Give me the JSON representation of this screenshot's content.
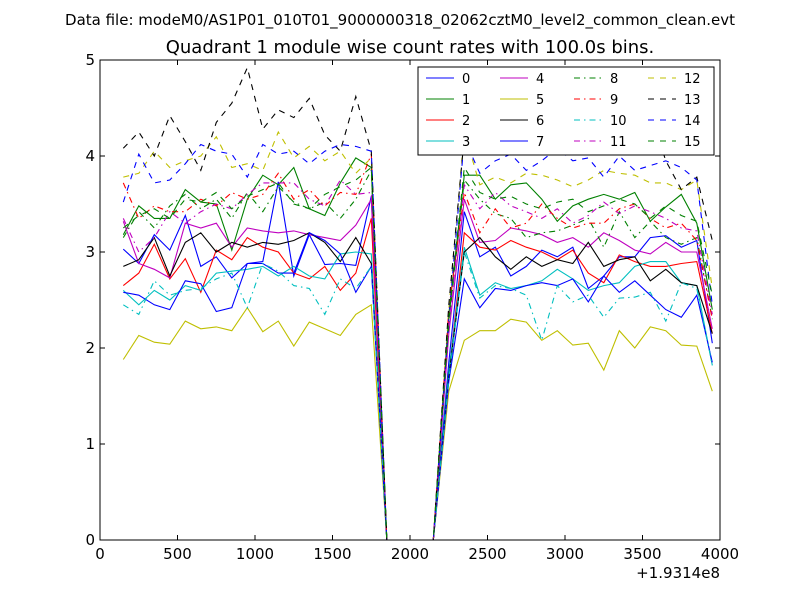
{
  "suptitle": "Data file: modeM0/AS1P01_010T01_9000000318_02062cztM0_level2_common_clean.evt",
  "chart_data": {
    "type": "line",
    "title": "Quadrant 1 module wise count rates with 100.0s bins.",
    "xlabel": "",
    "ylabel": "",
    "offset_label": "+1.9314e8",
    "xlim": [
      0,
      4000
    ],
    "ylim": [
      0,
      5
    ],
    "xticks": [
      0,
      500,
      1000,
      1500,
      2000,
      2500,
      3000,
      3500,
      4000
    ],
    "yticks": [
      0,
      1,
      2,
      3,
      4,
      5
    ],
    "legend_position": "top-right",
    "x": [
      150,
      250,
      350,
      450,
      550,
      650,
      750,
      850,
      950,
      1050,
      1150,
      1250,
      1350,
      1450,
      1550,
      1650,
      1750,
      1850,
      1950,
      2050,
      2150,
      2250,
      2350,
      2450,
      2550,
      2650,
      2750,
      2850,
      2950,
      3050,
      3150,
      3250,
      3350,
      3450,
      3550,
      3650,
      3750,
      3850,
      3950
    ],
    "series": [
      {
        "name": "0",
        "color": "#0000ff",
        "dash": "solid",
        "values": [
          3.03,
          2.88,
          3.18,
          3.02,
          3.38,
          2.85,
          2.95,
          2.73,
          2.88,
          2.9,
          3.73,
          2.75,
          3.18,
          2.87,
          2.88,
          2.86,
          3.58,
          0,
          0,
          0,
          0,
          1.85,
          3.42,
          2.95,
          3.05,
          2.75,
          2.85,
          3.02,
          2.95,
          3.05,
          2.62,
          2.75,
          2.95,
          2.95,
          3.15,
          3.17,
          3.05,
          3.12,
          2.05
        ]
      },
      {
        "name": "1",
        "color": "#008000",
        "dash": "solid",
        "values": [
          3.18,
          3.48,
          3.35,
          3.35,
          3.65,
          3.52,
          3.5,
          3.02,
          3.55,
          3.8,
          3.7,
          3.88,
          3.45,
          3.38,
          3.72,
          3.98,
          3.88,
          0,
          0,
          0,
          0,
          2.35,
          3.8,
          3.8,
          3.55,
          3.7,
          3.72,
          3.55,
          3.32,
          3.48,
          3.55,
          3.6,
          3.55,
          3.62,
          3.32,
          3.47,
          3.6,
          3.3,
          2.4
        ]
      },
      {
        "name": "2",
        "color": "#ff0000",
        "dash": "solid",
        "values": [
          2.65,
          2.78,
          3.08,
          2.72,
          2.93,
          2.58,
          3.02,
          2.92,
          3.15,
          3.05,
          3.0,
          2.78,
          2.72,
          2.85,
          2.6,
          2.78,
          3.35,
          0,
          0,
          0,
          0,
          1.72,
          3.2,
          3.05,
          3.02,
          3.12,
          3.05,
          3.0,
          2.92,
          3.02,
          2.78,
          2.68,
          2.97,
          2.9,
          2.85,
          2.85,
          2.88,
          2.9,
          2.15
        ]
      },
      {
        "name": "3",
        "color": "#00bfbf",
        "dash": "solid",
        "values": [
          2.6,
          2.45,
          2.6,
          2.5,
          2.65,
          2.6,
          2.78,
          2.8,
          2.82,
          2.85,
          2.75,
          2.85,
          2.75,
          2.72,
          2.98,
          3.0,
          2.98,
          0,
          0,
          0,
          0,
          1.75,
          3.05,
          2.55,
          2.68,
          2.62,
          2.65,
          2.7,
          2.82,
          2.72,
          2.6,
          2.65,
          2.68,
          2.85,
          2.9,
          2.9,
          2.68,
          2.65,
          1.82
        ]
      },
      {
        "name": "4",
        "color": "#bf00bf",
        "dash": "solid",
        "values": [
          3.32,
          2.88,
          2.82,
          2.73,
          3.3,
          3.25,
          3.3,
          3.05,
          3.25,
          3.22,
          3.2,
          3.22,
          3.18,
          3.15,
          3.12,
          3.28,
          3.55,
          0,
          0,
          0,
          0,
          2.15,
          3.55,
          3.1,
          3.12,
          3.25,
          3.22,
          3.18,
          3.1,
          3.15,
          3.05,
          3.2,
          3.12,
          3.02,
          2.98,
          3.1,
          3.0,
          3.0,
          2.2
        ]
      },
      {
        "name": "5",
        "color": "#bfbf00",
        "dash": "solid",
        "values": [
          1.88,
          2.13,
          2.06,
          2.04,
          2.28,
          2.2,
          2.22,
          2.18,
          2.42,
          2.17,
          2.28,
          2.02,
          2.27,
          2.2,
          2.13,
          2.35,
          2.45,
          0,
          0,
          0,
          0,
          1.55,
          2.08,
          2.18,
          2.18,
          2.3,
          2.27,
          2.08,
          2.18,
          2.03,
          2.05,
          1.77,
          2.18,
          2.0,
          2.22,
          2.18,
          2.03,
          2.02,
          1.55
        ]
      },
      {
        "name": "6",
        "color": "#000000",
        "dash": "solid",
        "values": [
          2.85,
          2.92,
          3.15,
          2.75,
          3.1,
          3.2,
          3.0,
          3.1,
          3.05,
          3.1,
          3.08,
          3.12,
          3.2,
          3.1,
          2.9,
          3.15,
          2.88,
          0,
          0,
          0,
          0,
          1.7,
          3.0,
          3.15,
          2.95,
          2.82,
          2.95,
          2.85,
          2.92,
          2.88,
          3.1,
          2.85,
          2.92,
          2.95,
          2.7,
          2.82,
          2.68,
          2.65,
          2.15
        ]
      },
      {
        "name": "7",
        "color": "#0000ff",
        "dash": "solid",
        "values": [
          2.58,
          2.55,
          2.45,
          2.4,
          2.7,
          2.67,
          2.38,
          2.42,
          2.88,
          2.88,
          2.78,
          2.78,
          3.2,
          3.12,
          2.98,
          2.58,
          2.85,
          0,
          0,
          0,
          0,
          1.65,
          2.72,
          2.42,
          2.62,
          2.6,
          2.65,
          2.68,
          2.65,
          2.72,
          2.48,
          2.75,
          2.58,
          2.7,
          2.55,
          2.4,
          2.32,
          2.55,
          1.85
        ]
      },
      {
        "name": "8",
        "color": "#008000",
        "dash": "dashdot",
        "values": [
          3.15,
          3.42,
          3.25,
          3.48,
          3.6,
          3.45,
          3.55,
          3.35,
          3.62,
          3.42,
          3.68,
          3.52,
          3.45,
          3.52,
          3.35,
          3.55,
          3.85,
          0,
          0,
          0,
          0,
          2.25,
          3.75,
          3.55,
          3.4,
          3.35,
          3.15,
          3.2,
          3.22,
          3.28,
          3.35,
          3.05,
          3.42,
          3.15,
          3.32,
          3.15,
          3.08,
          3.15,
          2.3
        ]
      },
      {
        "name": "9",
        "color": "#ff0000",
        "dash": "dashdot",
        "values": [
          3.72,
          3.35,
          3.48,
          3.42,
          3.42,
          3.55,
          3.48,
          3.62,
          3.55,
          3.6,
          3.82,
          3.55,
          3.65,
          3.48,
          3.62,
          3.6,
          4.02,
          0,
          0,
          0,
          0,
          2.4,
          3.62,
          3.2,
          3.45,
          3.25,
          3.3,
          3.5,
          3.35,
          3.25,
          3.3,
          3.3,
          3.45,
          3.5,
          3.35,
          3.25,
          3.3,
          3.12,
          2.3
        ]
      },
      {
        "name": "10",
        "color": "#00bfbf",
        "dash": "dashdot",
        "values": [
          2.45,
          2.35,
          2.7,
          2.55,
          2.6,
          2.62,
          2.72,
          2.78,
          2.42,
          2.88,
          2.8,
          2.65,
          2.62,
          2.35,
          2.72,
          2.62,
          2.85,
          0,
          0,
          0,
          0,
          1.68,
          3.0,
          2.52,
          2.65,
          2.62,
          2.55,
          2.08,
          2.65,
          2.48,
          2.55,
          2.32,
          2.52,
          2.53,
          2.58,
          2.28,
          2.68,
          2.62,
          1.82
        ]
      },
      {
        "name": "11",
        "color": "#bf00bf",
        "dash": "dashdot",
        "values": [
          3.35,
          3.0,
          3.15,
          3.42,
          3.3,
          3.42,
          3.5,
          3.45,
          3.6,
          3.72,
          3.72,
          3.72,
          3.55,
          3.48,
          3.75,
          3.6,
          3.62,
          0,
          0,
          0,
          0,
          2.25,
          3.7,
          3.45,
          3.62,
          3.48,
          3.42,
          3.35,
          3.45,
          3.3,
          3.38,
          3.52,
          3.4,
          3.48,
          3.42,
          3.35,
          3.25,
          3.22,
          2.35
        ]
      },
      {
        "name": "12",
        "color": "#bfbf00",
        "dash": "dashed",
        "values": [
          3.78,
          3.82,
          4.05,
          3.88,
          3.95,
          4.0,
          4.2,
          3.88,
          3.92,
          3.85,
          4.25,
          3.98,
          4.1,
          3.95,
          4.05,
          3.82,
          3.98,
          0,
          0,
          0,
          0,
          2.4,
          4.25,
          3.7,
          3.78,
          3.72,
          3.82,
          3.8,
          3.75,
          3.68,
          3.75,
          3.85,
          3.82,
          3.8,
          3.72,
          3.72,
          3.65,
          3.75,
          2.62
        ]
      },
      {
        "name": "13",
        "color": "#000000",
        "dash": "dashed",
        "values": [
          4.08,
          4.25,
          4.0,
          4.42,
          4.15,
          3.85,
          4.35,
          4.55,
          4.92,
          4.28,
          4.48,
          4.4,
          4.6,
          4.22,
          4.05,
          4.62,
          4.05,
          0,
          0,
          0,
          0,
          2.45,
          4.2,
          4.68,
          4.35,
          4.55,
          4.15,
          4.05,
          4.22,
          4.3,
          4.5,
          4.1,
          4.28,
          4.05,
          4.45,
          3.95,
          3.65,
          3.78,
          3.12
        ]
      },
      {
        "name": "14",
        "color": "#0000ff",
        "dash": "dashed",
        "values": [
          3.52,
          4.02,
          3.72,
          3.75,
          3.92,
          4.12,
          4.05,
          4.02,
          3.78,
          4.12,
          4.02,
          4.05,
          3.92,
          4.05,
          4.12,
          4.1,
          4.05,
          0,
          0,
          0,
          0,
          2.3,
          4.18,
          3.82,
          3.95,
          4.02,
          3.85,
          3.95,
          4.08,
          3.95,
          3.98,
          3.78,
          4.0,
          3.85,
          3.9,
          3.95,
          3.88,
          3.75,
          2.45
        ]
      },
      {
        "name": "15",
        "color": "#008000",
        "dash": "dashed",
        "values": [
          3.25,
          3.38,
          3.45,
          3.35,
          3.55,
          3.52,
          3.62,
          3.45,
          3.58,
          3.65,
          3.72,
          3.5,
          3.45,
          3.6,
          3.68,
          3.75,
          3.88,
          0,
          0,
          0,
          0,
          2.3,
          3.88,
          3.62,
          3.55,
          3.58,
          3.5,
          3.45,
          3.52,
          3.55,
          3.42,
          3.48,
          3.55,
          3.5,
          3.35,
          3.48,
          3.38,
          3.32,
          2.55
        ]
      }
    ]
  }
}
